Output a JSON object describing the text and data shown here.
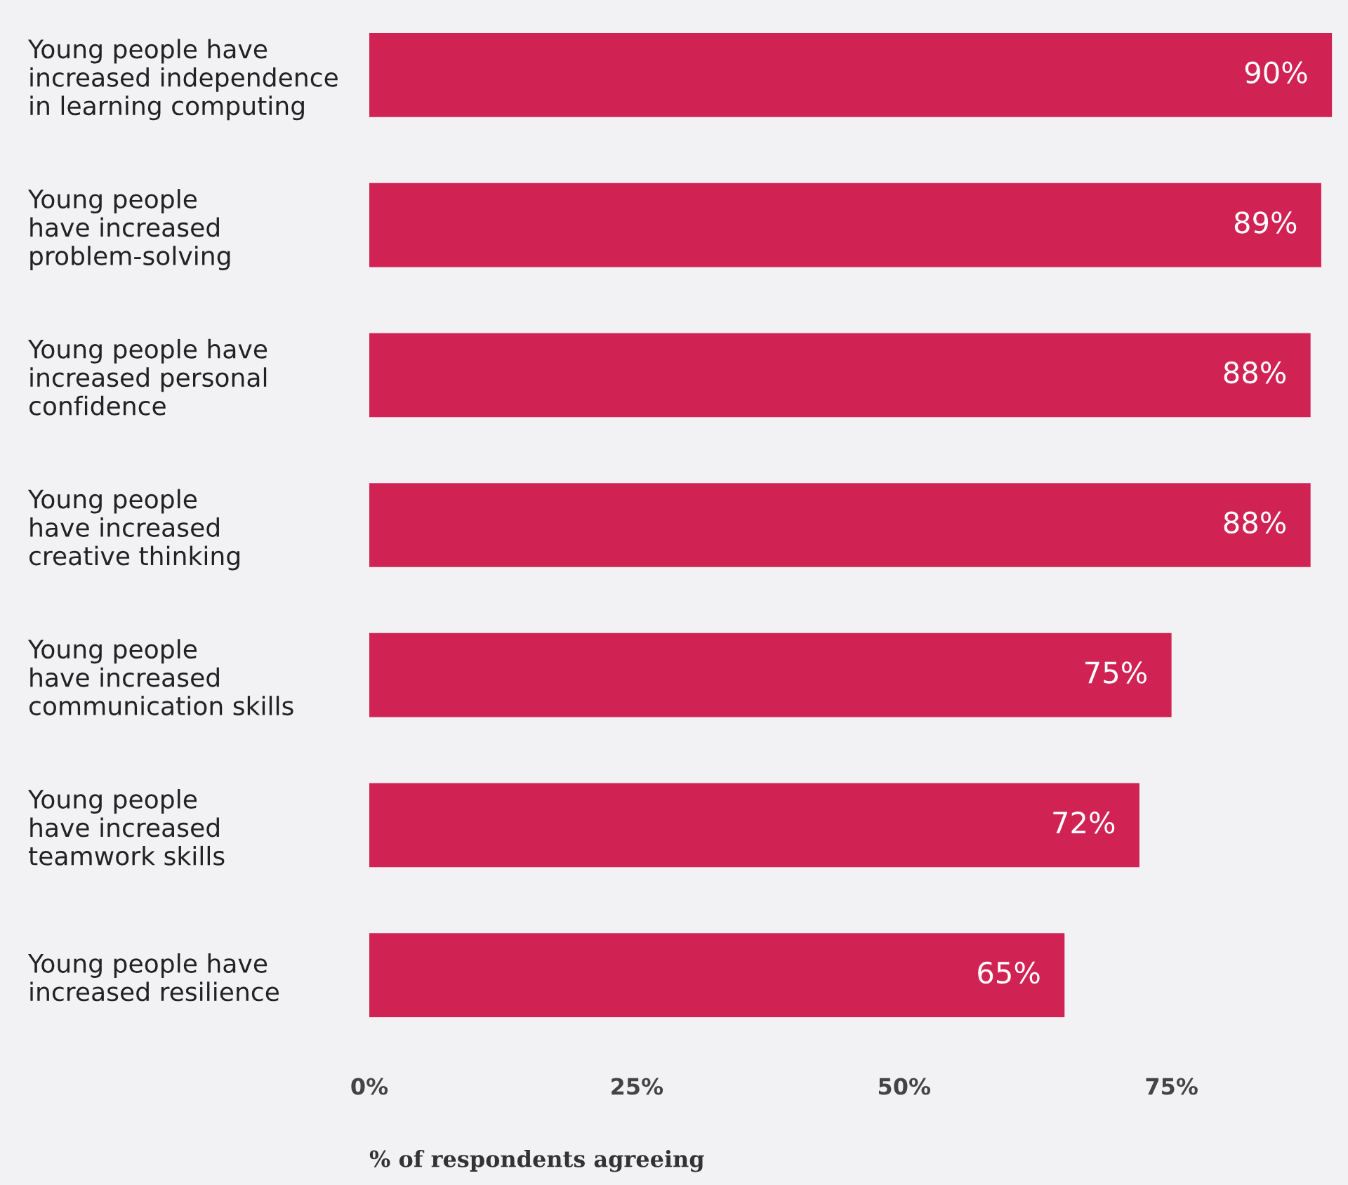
{
  "chart_data": {
    "type": "bar",
    "orientation": "horizontal",
    "xlabel": "% of respondents agreeing",
    "categories": [
      "Young people have\nincreased independence\nin learning computing",
      "Young people\nhave increased\nproblem-solving",
      "Young people have\nincreased personal\nconfidence",
      "Young people\nhave increased\ncreative thinking",
      "Young people\nhave increased\ncommunication skills",
      "Young people\nhave increased\nteamwork skills",
      "Young people have\nincreased resilience"
    ],
    "values": [
      90,
      89,
      88,
      88,
      75,
      72,
      65
    ],
    "value_labels": [
      "90%",
      "89%",
      "88%",
      "88%",
      "75%",
      "72%",
      "65%"
    ],
    "color": "#d02353",
    "xlim": [
      0,
      91.5
    ],
    "xticks": [
      {
        "value": 0,
        "label": "0%"
      },
      {
        "value": 25,
        "label": "25%"
      },
      {
        "value": 50,
        "label": "50%"
      },
      {
        "value": 75,
        "label": "75%"
      }
    ],
    "grid": false
  }
}
